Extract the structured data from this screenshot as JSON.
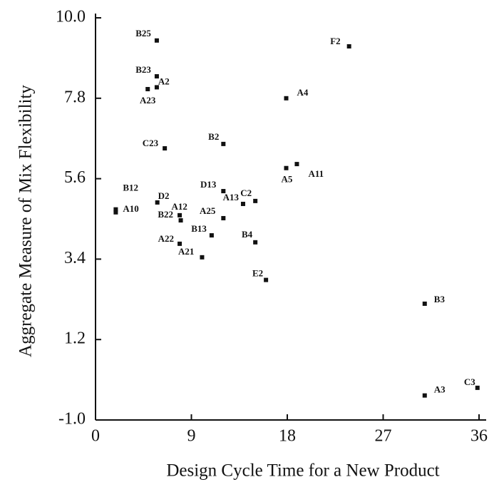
{
  "chart_data": {
    "type": "scatter",
    "xlabel": "Design Cycle Time for a New Product",
    "ylabel": "Aggregate Measure of Mix Flexibility",
    "xlim": [
      0,
      36
    ],
    "ylim": [
      -1.0,
      10.0
    ],
    "xticks": [
      0,
      9,
      18,
      27,
      36
    ],
    "yticks": [
      {
        "value": -1.0,
        "label": "-1.0"
      },
      1.2,
      3.4,
      5.6,
      7.8,
      {
        "value": 10.0,
        "label": "10.0"
      }
    ],
    "color": "#111111",
    "labels": [
      "B25",
      "B23",
      "A2",
      "A23",
      "C23",
      "B2",
      "F2",
      "A4",
      "A5",
      "A11",
      "B12",
      "A10",
      "D2",
      "B22",
      "A12",
      "A25",
      "D13",
      "A13",
      "C2",
      "B13",
      "A22",
      "A21",
      "B4",
      "E2",
      "B3",
      "A3",
      "C3"
    ],
    "x": [
      5.75,
      5.75,
      5.75,
      4.9,
      6.5,
      12,
      23.8,
      17.9,
      17.9,
      18.9,
      1.9,
      1.9,
      5.8,
      7.9,
      8.0,
      12,
      12,
      13.85,
      15,
      10.9,
      7.9,
      10,
      15,
      16,
      30.9,
      30.9,
      35.85
    ],
    "y": [
      9.38,
      8.4,
      8.1,
      8.05,
      6.43,
      6.55,
      9.22,
      7.8,
      5.89,
      6.0,
      4.76,
      4.68,
      4.95,
      4.6,
      4.46,
      4.52,
      5.26,
      4.91,
      4.99,
      4.05,
      3.82,
      3.45,
      3.86,
      2.83,
      2.18,
      -0.33,
      -0.12
    ]
  }
}
